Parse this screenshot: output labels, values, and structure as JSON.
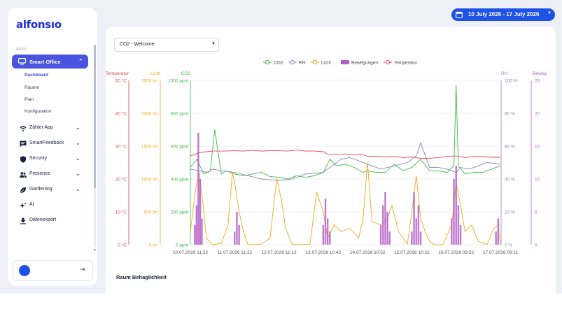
{
  "app": {
    "logo": "alfonsıo"
  },
  "sidebar": {
    "section_label": "APPS",
    "active_app": {
      "label": "Smart Office",
      "icon": "monitor-icon"
    },
    "subitems": [
      {
        "label": "Dashboard",
        "active": true
      },
      {
        "label": "Räume",
        "active": false
      },
      {
        "label": "Plan",
        "active": false
      },
      {
        "label": "Konfiguration",
        "active": false
      }
    ],
    "items": [
      {
        "label": "Zähler App",
        "icon": "wifi-icon",
        "has_chevron": true
      },
      {
        "label": "SmartFeedback",
        "icon": "chat-icon",
        "has_chevron": true
      },
      {
        "label": "Security",
        "icon": "shield-icon",
        "has_chevron": true
      },
      {
        "label": "Presence",
        "icon": "people-icon",
        "has_chevron": true
      },
      {
        "label": "Gardening",
        "icon": "leaf-icon",
        "has_chevron": true
      },
      {
        "label": "AI",
        "icon": "sparkle-icon",
        "has_chevron": false
      },
      {
        "label": "Datenexport",
        "icon": "download-icon",
        "has_chevron": false
      }
    ]
  },
  "header": {
    "date_range": "10 July 2026 - 17 July 2026"
  },
  "room_select": {
    "value": "CO2 - Welcome"
  },
  "section_title": "Raum Behaglichkeit",
  "colors": {
    "co2": "#3dbb3d",
    "rh": "#8a84b8",
    "licht": "#f3a81b",
    "bewegungen": "#b45fc8",
    "temperatur": "#e8434f",
    "brand": "#1f52e6"
  },
  "chart_data": {
    "type": "line",
    "legend_position": "top",
    "grid": true,
    "x_ticks": [
      "10.07.2026 11:22",
      "11.07.2026 11:32",
      "12.07.2026 11:12",
      "13.07.2026 10:42",
      "14.07.2026 10:52",
      "15.07.2026 10:22",
      "16.07.2026 09:52",
      "17.07.2026 09:11"
    ],
    "axes": {
      "temperatur": {
        "label": "Temperatur",
        "ticks": [
          "50 °C",
          "40 °C",
          "30 °C",
          "20 °C",
          "10 °C",
          "0 °C"
        ],
        "range": [
          0,
          50
        ]
      },
      "licht": {
        "label": "Licht",
        "ticks": [
          "2500 lm",
          "2000 lm",
          "1500 lm",
          "1000 lm",
          "500 lm",
          "0 lm"
        ],
        "range": [
          0,
          2500
        ]
      },
      "co2": {
        "label": "CO2",
        "ticks": [
          "1000 ppm",
          "800 ppm",
          "600 ppm",
          "400 ppm",
          "200 ppm",
          "0 ppm"
        ],
        "range": [
          0,
          1000
        ]
      },
      "rh": {
        "label": "RH",
        "ticks": [
          "100 %",
          "80 %",
          "60 %",
          "40 %",
          "20 %",
          "0 %"
        ],
        "range": [
          0,
          100
        ]
      },
      "bewegungen": {
        "label": "Bewegungen",
        "ticks": [
          "25",
          "20",
          "15",
          "10",
          "5",
          "0"
        ],
        "range": [
          0,
          25
        ]
      }
    },
    "series": [
      {
        "name": "CO2",
        "axis": "co2",
        "x": [
          0,
          0.15,
          0.3,
          0.45,
          0.55,
          0.7,
          0.8,
          0.9,
          1.0,
          1.2,
          1.4,
          1.6,
          1.8,
          2.0,
          2.2,
          2.4,
          2.6,
          2.8,
          3.0,
          3.15,
          3.3,
          3.5,
          3.7,
          3.9,
          4.0,
          4.2,
          4.4,
          4.6,
          4.8,
          5.0,
          5.2,
          5.4,
          5.6,
          5.8,
          5.95,
          6.0,
          6.05,
          6.2,
          6.4,
          6.6,
          6.8,
          7.0
        ],
        "y": [
          470,
          520,
          430,
          450,
          700,
          430,
          450,
          440,
          430,
          420,
          430,
          440,
          415,
          410,
          400,
          420,
          410,
          420,
          440,
          520,
          480,
          490,
          470,
          440,
          450,
          440,
          440,
          490,
          450,
          470,
          520,
          450,
          450,
          440,
          480,
          970,
          480,
          430,
          440,
          440,
          460,
          480
        ]
      },
      {
        "name": "RH",
        "axis": "rh",
        "x": [
          0,
          0.2,
          0.4,
          0.5,
          0.7,
          1.0,
          1.3,
          1.6,
          2.0,
          2.3,
          2.6,
          3.0,
          3.2,
          3.4,
          3.6,
          3.8,
          4.0,
          4.3,
          4.6,
          4.9,
          5.1,
          5.2,
          5.4,
          5.6,
          5.8,
          6.0,
          6.1,
          6.3,
          6.5,
          6.7,
          7.0
        ],
        "y": [
          46,
          45,
          44,
          46,
          45,
          44,
          42,
          40,
          39,
          40,
          43,
          44,
          48,
          52,
          53,
          51,
          49,
          46,
          48,
          50,
          54,
          62,
          47,
          47,
          46,
          44,
          47,
          46,
          48,
          50,
          49
        ]
      },
      {
        "name": "Licht",
        "axis": "licht",
        "x": [
          0,
          0.12,
          0.2,
          0.28,
          0.36,
          0.5,
          0.7,
          0.85,
          0.95,
          1.0,
          1.1,
          1.2,
          1.3,
          1.45,
          1.6,
          1.8,
          1.95,
          2.05,
          2.15,
          2.3,
          2.5,
          2.7,
          2.85,
          3.0,
          3.1,
          3.25,
          3.4,
          3.6,
          3.8,
          3.9,
          4.0,
          4.1,
          4.3,
          4.45,
          4.55,
          4.7,
          4.9,
          5.0,
          5.1,
          5.2,
          5.3,
          5.4,
          5.5,
          5.7,
          5.9,
          6.0,
          6.1,
          6.2,
          6.35,
          6.5,
          6.7,
          6.85,
          6.95,
          7.0
        ],
        "y": [
          200,
          850,
          1100,
          650,
          100,
          0,
          20,
          300,
          1100,
          950,
          500,
          200,
          0,
          0,
          10,
          100,
          1000,
          700,
          250,
          0,
          0,
          10,
          800,
          500,
          100,
          300,
          200,
          250,
          100,
          400,
          1250,
          350,
          300,
          400,
          600,
          200,
          10,
          500,
          1050,
          400,
          200,
          50,
          0,
          0,
          300,
          950,
          600,
          200,
          300,
          50,
          0,
          250,
          300,
          0
        ]
      },
      {
        "name": "Bewegungen",
        "axis": "bewegungen",
        "x": [
          0.1,
          0.14,
          0.18,
          0.22,
          0.26,
          1.0,
          1.05,
          1.1,
          3.0,
          3.05,
          3.1,
          3.15,
          4.3,
          4.35,
          4.4,
          4.45,
          4.5,
          5.0,
          5.05,
          5.1,
          5.15,
          5.2,
          5.9,
          5.95,
          6.0,
          6.05,
          6.1,
          6.9,
          6.95
        ],
        "y": [
          3,
          6,
          17,
          10,
          4,
          2,
          5,
          3,
          3,
          7,
          4,
          2,
          3,
          6,
          8,
          5,
          2,
          2,
          8,
          4,
          6,
          2,
          4,
          10,
          12,
          6,
          3,
          2,
          4
        ]
      },
      {
        "name": "Temperatur",
        "axis": "temperatur",
        "x": [
          0,
          0.2,
          0.3,
          0.5,
          0.8,
          1.0,
          1.2,
          1.4,
          1.6,
          1.8,
          2.0,
          2.2,
          2.4,
          2.6,
          2.8,
          3.0,
          3.1,
          3.3,
          3.5,
          3.7,
          3.9,
          4.0,
          4.2,
          4.4,
          4.6,
          4.8,
          5.0,
          5.2,
          5.4,
          5.6,
          5.8,
          6.0,
          6.2,
          6.4,
          6.6,
          6.8,
          7.0
        ],
        "y": [
          27,
          28,
          28.2,
          28.5,
          28.5,
          28.6,
          28.5,
          28.7,
          28.5,
          28.6,
          28.6,
          28.5,
          28.8,
          28.5,
          28.5,
          28.3,
          27.5,
          27.5,
          27.6,
          27.3,
          27.4,
          26.9,
          26.9,
          26.7,
          26.9,
          26.5,
          26.7,
          26.3,
          26.3,
          26.5,
          26.9,
          27.0,
          26.5,
          26.9,
          26.8,
          26.6,
          26.6
        ]
      }
    ]
  }
}
